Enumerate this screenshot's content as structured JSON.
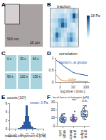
{
  "image_panels": [
    {
      "panel": "A",
      "scale_labels": [
        "500 nm",
        "10 µm"
      ]
    },
    {
      "panel": "C",
      "frame_labels": [
        "0 s",
        "30 s",
        "60 s",
        "90 s",
        "120 s",
        "150 s"
      ]
    }
  ],
  "chart_data": [
    {
      "panel": "B",
      "type": "heatmap",
      "title": "traction",
      "tick_labels": false,
      "grid": false,
      "colors": [
        "#ffffff",
        "#6baed6",
        "#08306b"
      ],
      "cells": [
        [
          2,
          3,
          4,
          3,
          2,
          3,
          5,
          4,
          3,
          2
        ],
        [
          3,
          6,
          9,
          5,
          3,
          4,
          8,
          12,
          6,
          3
        ],
        [
          2,
          5,
          14,
          8,
          4,
          3,
          6,
          9,
          5,
          2
        ],
        [
          3,
          4,
          7,
          6,
          5,
          4,
          3,
          4,
          3,
          2
        ],
        [
          2,
          3,
          4,
          8,
          15,
          10,
          4,
          3,
          2,
          3
        ],
        [
          3,
          4,
          5,
          9,
          11,
          7,
          4,
          5,
          8,
          4
        ],
        [
          2,
          3,
          3,
          4,
          5,
          4,
          3,
          6,
          16,
          7
        ],
        [
          2,
          2,
          3,
          3,
          3,
          2,
          3,
          4,
          6,
          3
        ]
      ],
      "colorbar_range": [
        0,
        18
      ],
      "colorbar_ticks": [
        {
          "value": 18,
          "label": "18 Pa"
        }
      ]
    },
    {
      "panel": "D",
      "type": "line",
      "title": "correlation",
      "x_label": "log time τ [min.]",
      "log": "x",
      "grid": false,
      "x": [
        0.5,
        1,
        2,
        5,
        10,
        20,
        50,
        100,
        150
      ],
      "series": [
        {
          "name": "traction tₛ at groups",
          "color": "#1f4e9c",
          "values": [
            0.9,
            0.8,
            0.65,
            0.5,
            0.4,
            0.35,
            0.3,
            0.28,
            0.27
          ]
        },
        {
          "name": "noise",
          "color": "#e08a2c",
          "values": [
            0.3,
            0.1,
            0.05,
            0.03,
            0.02,
            0.02,
            0.02,
            0.02,
            0.02
          ]
        }
      ],
      "xlim": [
        0.5,
        200
      ],
      "xticks": [
        1,
        10,
        100
      ],
      "ylim": [
        0,
        1
      ],
      "yticks": [
        0,
        0.5,
        1
      ]
    },
    {
      "panel": "E",
      "type": "histogram",
      "y_label": "counts [10³]",
      "x_label": "traction component tₓ [Pa]",
      "annotations": [
        "mean: 0 Pa"
      ],
      "color": "#2c5aa0",
      "grid": false,
      "bins": [
        -15,
        -14,
        -13,
        -12,
        -11,
        -10,
        -9,
        -8,
        -7,
        -6,
        -5,
        -4,
        -3,
        -2,
        -1,
        0,
        1,
        2,
        3,
        4,
        5,
        6,
        7,
        8,
        9,
        10,
        11,
        12,
        13,
        14,
        15
      ],
      "counts": [
        0,
        0.01,
        0.01,
        0.02,
        0.03,
        0.05,
        0.08,
        0.12,
        0.2,
        0.3,
        0.5,
        0.9,
        1.6,
        3.0,
        5.5,
        5.5,
        3.0,
        1.6,
        0.9,
        0.5,
        0.3,
        0.2,
        0.12,
        0.08,
        0.05,
        0.03,
        0.02,
        0.01,
        0.01,
        0
      ],
      "xlim": [
        -15,
        15
      ],
      "xticks": [
        -15,
        -10,
        -5,
        0,
        5,
        10,
        15
      ],
      "ylim": [
        0,
        6
      ],
      "yticks": [
        0,
        2,
        4,
        6
      ]
    },
    {
      "panel": "F",
      "type": "strip",
      "y_label": "local force in hotspots [pN]",
      "grid": false,
      "categories": [
        "single cells",
        "group interior",
        "group edges"
      ],
      "colors": [
        "#2c5aa0",
        "#5a4fa0",
        "#2c5aa0"
      ],
      "values": [
        [
          4,
          5,
          6,
          7,
          8,
          9,
          10,
          11,
          12,
          6,
          7,
          8,
          5,
          9,
          13,
          15
        ],
        [
          5,
          6,
          7,
          8,
          9,
          10,
          6,
          7,
          8,
          11,
          12,
          9,
          7,
          8,
          14,
          18
        ],
        [
          8,
          10,
          12,
          14,
          16,
          18,
          20,
          11,
          13,
          15,
          17,
          22,
          25,
          12,
          14,
          19
        ]
      ],
      "annotations": [
        {
          "text": "***",
          "x": 1,
          "y": 27
        },
        {
          "text": "n.s.",
          "x": 2,
          "y": 27
        }
      ],
      "ylim": [
        0,
        30
      ],
      "yticks": [
        0,
        10,
        20,
        30
      ]
    }
  ]
}
